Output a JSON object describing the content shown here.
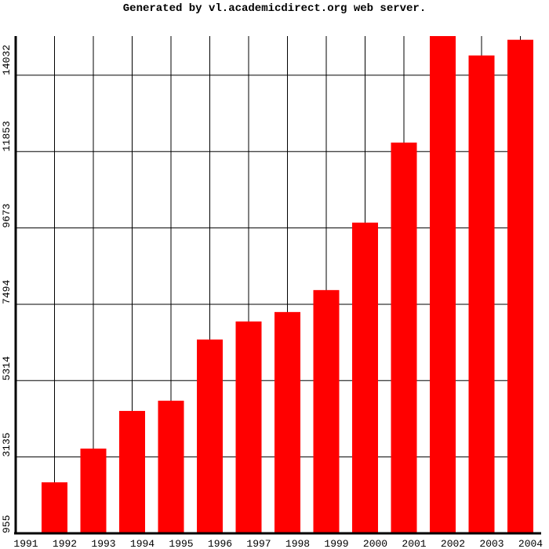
{
  "chart_data": {
    "type": "bar",
    "title": "Generated by vl.academicdirect.org web server.",
    "categories": [
      "1991",
      "1992",
      "1993",
      "1994",
      "1995",
      "1996",
      "1997",
      "1998",
      "1999",
      "2000",
      "2001",
      "2002",
      "2003",
      "2004"
    ],
    "values": [
      955,
      2411,
      3374,
      4449,
      4741,
      6488,
      7003,
      7272,
      7899,
      9825,
      12110,
      15150,
      14597,
      15045
    ],
    "color": "#ff0000",
    "ylim": [
      955,
      15150
    ],
    "yticks": [
      955,
      3135,
      5314,
      7494,
      9673,
      11853,
      14032
    ],
    "grid": true
  }
}
